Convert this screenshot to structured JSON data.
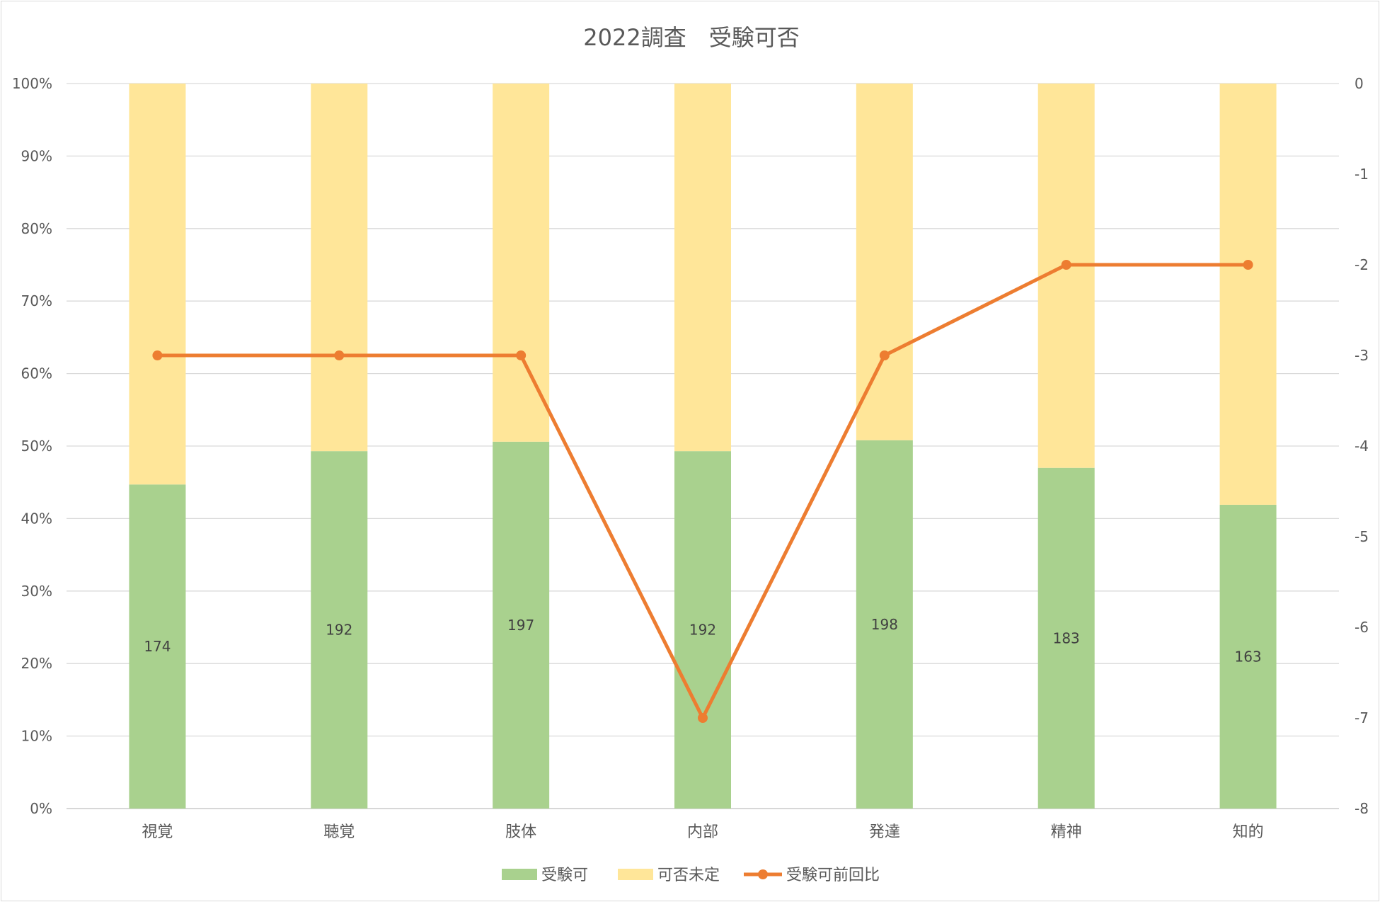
{
  "chart_data": {
    "type": "bar",
    "title": "2022調査　受験可否",
    "categories": [
      "視覚",
      "聴覚",
      "肢体",
      "内部",
      "発達",
      "精神",
      "知的"
    ],
    "series": [
      {
        "name": "受験可",
        "kind": "stacked-bar-percent",
        "axis": "left",
        "values": [
          44.7,
          49.3,
          50.6,
          49.3,
          50.8,
          47.0,
          41.9
        ],
        "data_labels": [
          "174",
          "192",
          "197",
          "192",
          "198",
          "183",
          "163"
        ],
        "color": "#a9d18e"
      },
      {
        "name": "可否未定",
        "kind": "stacked-bar-percent",
        "axis": "left",
        "values": [
          55.3,
          50.7,
          49.4,
          50.7,
          49.2,
          53.0,
          58.1
        ],
        "color": "#ffe699"
      },
      {
        "name": "受験可前回比",
        "kind": "line",
        "axis": "right",
        "values": [
          -3,
          -3,
          -3,
          -7,
          -3,
          -2,
          -2
        ],
        "color": "#ed7d31"
      }
    ],
    "y_left": {
      "ylim": [
        0,
        100
      ],
      "ticks": [
        "0%",
        "10%",
        "20%",
        "30%",
        "40%",
        "50%",
        "60%",
        "70%",
        "80%",
        "90%",
        "100%"
      ]
    },
    "y_right": {
      "ylim": [
        -8,
        0
      ],
      "ticks": [
        "-8",
        "-7",
        "-6",
        "-5",
        "-4",
        "-3",
        "-2",
        "-1",
        "0"
      ]
    },
    "grid": true,
    "legend": "bottom-center"
  }
}
